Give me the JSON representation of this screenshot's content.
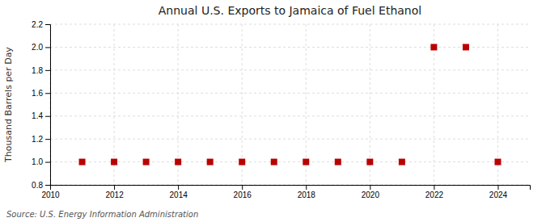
{
  "chart_data": {
    "type": "scatter",
    "title": "Annual U.S. Exports to Jamaica of Fuel Ethanol",
    "ylabel": "Thousand Barrels per Day",
    "source": "Source: U.S. Energy Information Administration",
    "x": [
      2011,
      2012,
      2013,
      2014,
      2015,
      2016,
      2017,
      2018,
      2019,
      2020,
      2021,
      2022,
      2023,
      2024
    ],
    "values": [
      1.0,
      1.0,
      1.0,
      1.0,
      1.0,
      1.0,
      1.0,
      1.0,
      1.0,
      1.0,
      1.0,
      2.0,
      2.0,
      1.0
    ],
    "color": "#bb0000",
    "marker": "square",
    "xlim": [
      2010,
      2025
    ],
    "ylim": [
      0.8,
      2.2
    ],
    "xticks": [
      2010,
      2012,
      2014,
      2016,
      2018,
      2020,
      2022,
      2024
    ],
    "yticks": [
      0.8,
      {
        "value": 1.0,
        "label": "1.0"
      },
      1.2,
      1.4,
      1.6,
      1.8,
      {
        "value": 2.0,
        "label": "2.0"
      },
      2.2
    ],
    "grid": true
  }
}
